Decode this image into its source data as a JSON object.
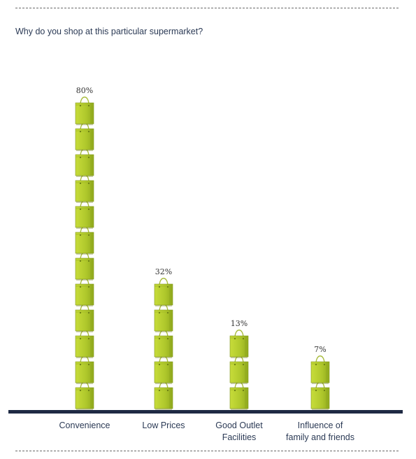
{
  "header": {
    "question": "Why do you shop at this particular supermarket?"
  },
  "colors": {
    "bag": "#b5cc2e",
    "bag_shade": "#8da61c",
    "baseline": "#1f2a44",
    "text": "#2b3a55"
  },
  "chart_data": {
    "type": "bar",
    "title": "Why do you shop at this particular supermarket?",
    "xlabel": "",
    "ylabel": "",
    "categories": [
      [
        "Convenience"
      ],
      [
        "Low Prices"
      ],
      [
        "Good Outlet",
        "Facilities"
      ],
      [
        "Influence of",
        "family and friends"
      ]
    ],
    "values": [
      80,
      32,
      13,
      7
    ],
    "value_labels": [
      "80%",
      "32%",
      "13%",
      "7%"
    ],
    "bag_counts": [
      12,
      5,
      3,
      2
    ],
    "grid": false,
    "legend": "none"
  }
}
